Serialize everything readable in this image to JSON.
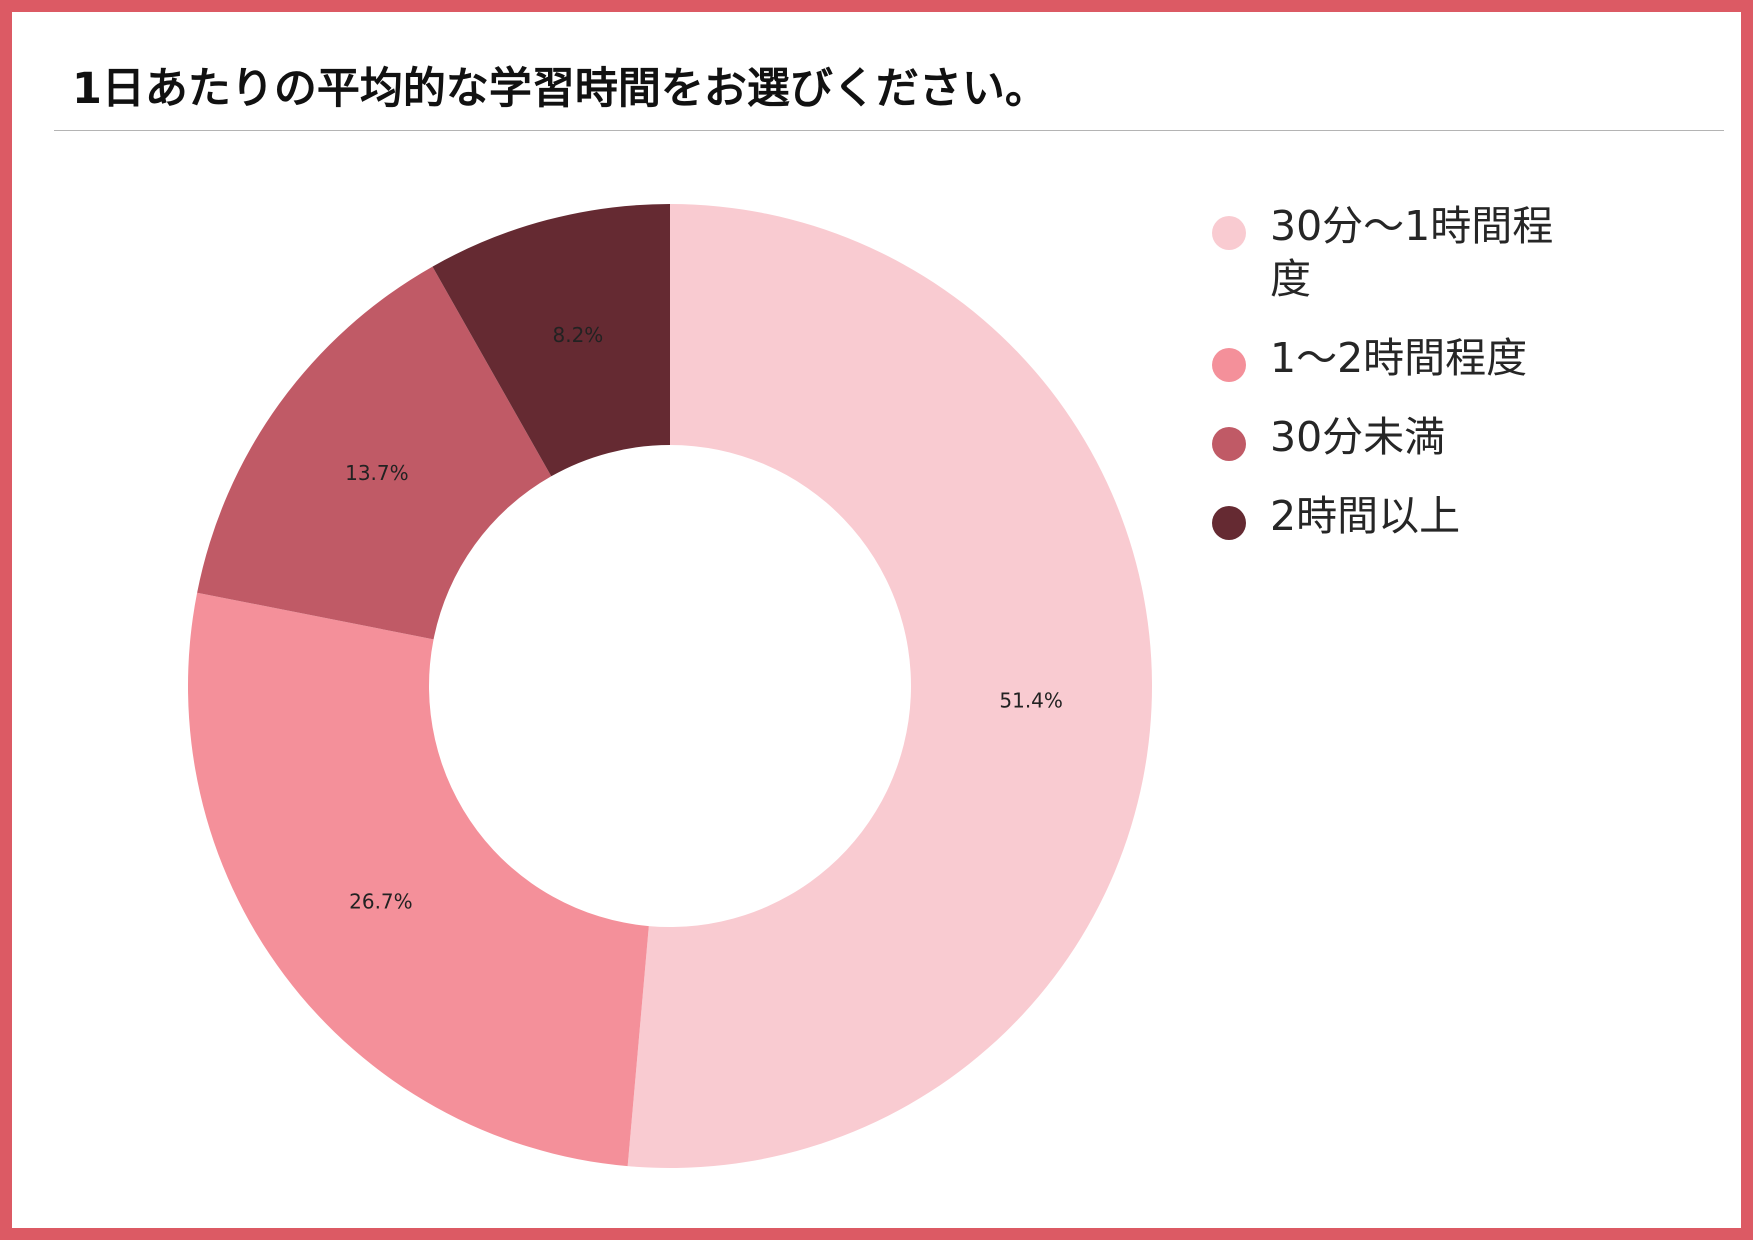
{
  "title": "1日あたりの平均的な学習時間をお選びください。",
  "colors": {
    "frame": "#dc5a64",
    "title_rule": "#b4b4b4"
  },
  "chart_data": {
    "type": "pie",
    "style": "donut",
    "inner_radius_ratio": 0.5,
    "start_angle_deg": 0,
    "direction": "clockwise",
    "legend_position": "right",
    "slices": [
      {
        "label": "30分〜1時間程度",
        "value": 51.4,
        "display": "51.4%",
        "color": "#f9cbd1"
      },
      {
        "label": "1〜2時間程度",
        "value": 26.7,
        "display": "26.7%",
        "color": "#f4909a"
      },
      {
        "label": "30分未満",
        "value": 13.7,
        "display": "13.7%",
        "color": "#c05a66"
      },
      {
        "label": "2時間以上",
        "value": 8.2,
        "display": "8.2%",
        "color": "#652a32"
      }
    ]
  }
}
